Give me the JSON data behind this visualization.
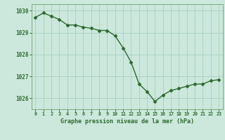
{
  "hours": [
    0,
    1,
    2,
    3,
    4,
    5,
    6,
    7,
    8,
    9,
    10,
    11,
    12,
    13,
    14,
    15,
    16,
    17,
    18,
    19,
    20,
    21,
    22,
    23
  ],
  "pressure": [
    1029.7,
    1029.9,
    1029.75,
    1029.6,
    1029.35,
    1029.35,
    1029.25,
    1029.2,
    1029.1,
    1029.1,
    1028.85,
    1028.3,
    1027.65,
    1026.65,
    1026.3,
    1025.85,
    1026.15,
    1026.35,
    1026.45,
    1026.55,
    1026.65,
    1026.65,
    1026.8,
    1026.85
  ],
  "line_color": "#2d6a2d",
  "marker_color": "#2d6a2d",
  "bg_color": "#cce8dc",
  "grid_color": "#a8cfc0",
  "axis_label_color": "#2d6a2d",
  "tick_color": "#2d6a2d",
  "xlabel": "Graphe pression niveau de la mer (hPa)",
  "ylim": [
    1025.5,
    1030.3
  ],
  "yticks": [
    1026,
    1027,
    1028,
    1029,
    1030
  ],
  "spine_color": "#7aaa7a"
}
